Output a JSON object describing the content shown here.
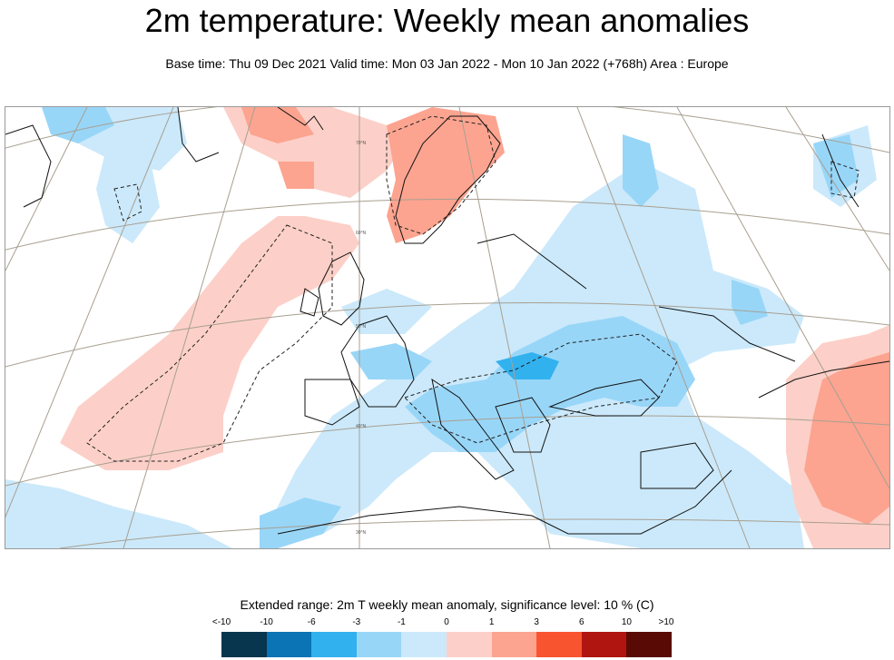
{
  "title": "2m temperature: Weekly mean anomalies",
  "subtitle": "Base time: Thu 09 Dec 2021 Valid time: Mon 03 Jan 2022 - Mon 10 Jan 2022 (+768h) Area : Europe",
  "map": {
    "latitude_labels": [
      "70°N",
      "60°N",
      "50°N",
      "40°N",
      "30°N"
    ]
  },
  "legend": {
    "title": "Extended range: 2m T weekly mean anomaly, significance level: 10 % (C)",
    "tick_labels": [
      "<-10",
      "-10",
      "-6",
      "-3",
      "-1",
      "0",
      "1",
      "3",
      "6",
      "10",
      ">10"
    ],
    "colors": [
      "#08364f",
      "#0a74b5",
      "#32b1ef",
      "#98d6f8",
      "#cbe9fb",
      "#fcd0c8",
      "#fca490",
      "#f85430",
      "#b01510",
      "#5a0a05"
    ]
  }
}
